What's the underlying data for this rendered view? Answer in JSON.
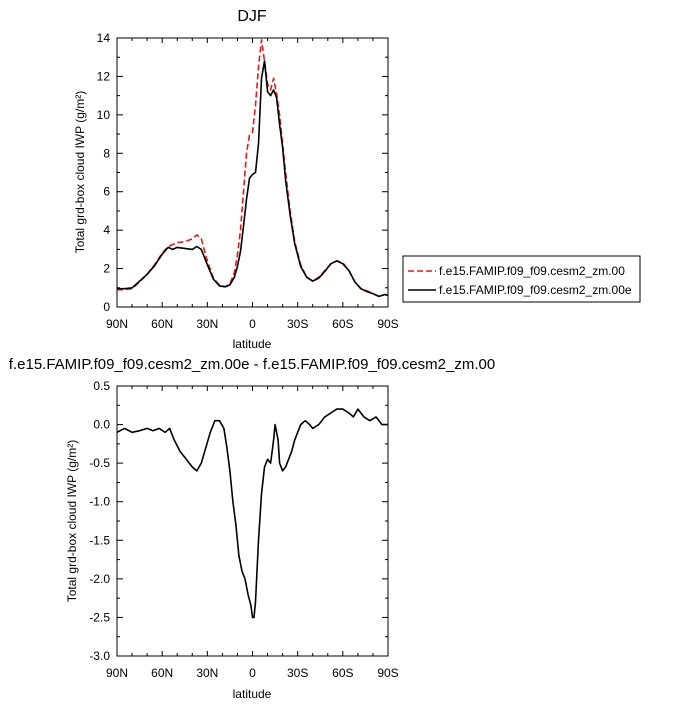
{
  "chart_data": [
    {
      "type": "line",
      "title": "DJF",
      "xlabel": "latitude",
      "ylabel": "Total grd-box cloud IWP (g/m²)",
      "xlim": [
        -90,
        90
      ],
      "ylim": [
        0,
        14
      ],
      "x_ticks": [
        -90,
        -60,
        -30,
        0,
        30,
        60,
        90
      ],
      "x_tick_labels": [
        "90N",
        "60N",
        "30N",
        "0",
        "30S",
        "60S",
        "90S"
      ],
      "y_ticks": [
        0,
        2,
        4,
        6,
        8,
        10,
        12,
        14
      ],
      "y_tick_labels": [
        "0",
        "2",
        "4",
        "6",
        "8",
        "10",
        "12",
        "14"
      ],
      "legend": "right",
      "series": [
        {
          "name": "f.e15.FAMIP.f09_f09.cesm2_zm.00",
          "color": "#e31a1c",
          "dash": "dashed",
          "x": [
            -90,
            -85,
            -80,
            -75,
            -70,
            -65,
            -60,
            -56,
            -53,
            -50,
            -45,
            -40,
            -37,
            -34,
            -30,
            -26,
            -22,
            -18,
            -15,
            -12,
            -10,
            -8,
            -6,
            -4,
            -2,
            0,
            2,
            4,
            6,
            8,
            10,
            12,
            14,
            16,
            18,
            20,
            22,
            25,
            28,
            32,
            36,
            40,
            44,
            48,
            52,
            56,
            60,
            64,
            68,
            72,
            76,
            80,
            84,
            88,
            90
          ],
          "y": [
            0.9,
            0.9,
            0.95,
            1.3,
            1.7,
            2.2,
            2.8,
            3.15,
            3.25,
            3.35,
            3.4,
            3.55,
            3.75,
            3.55,
            2.4,
            1.5,
            1.15,
            1.05,
            1.2,
            1.8,
            2.7,
            4.0,
            6.0,
            8.0,
            8.95,
            9.1,
            10.5,
            12.5,
            13.9,
            12.8,
            11.6,
            11.3,
            11.9,
            11.1,
            10.0,
            8.5,
            7.0,
            5.0,
            3.4,
            2.2,
            1.55,
            1.35,
            1.55,
            1.9,
            2.25,
            2.4,
            2.3,
            1.9,
            1.3,
            0.95,
            0.85,
            0.7,
            0.55,
            0.65,
            0.6
          ]
        },
        {
          "name": "f.e15.FAMIP.f09_f09.cesm2_zm.00e",
          "color": "#000000",
          "dash": "solid",
          "x": [
            -90,
            -85,
            -80,
            -75,
            -70,
            -65,
            -60,
            -56,
            -53,
            -50,
            -45,
            -40,
            -37,
            -34,
            -30,
            -26,
            -22,
            -18,
            -15,
            -12,
            -10,
            -8,
            -6,
            -4,
            -2,
            0,
            2,
            4,
            6,
            8,
            10,
            12,
            14,
            16,
            18,
            20,
            22,
            25,
            28,
            32,
            36,
            40,
            44,
            48,
            52,
            56,
            60,
            64,
            68,
            72,
            76,
            80,
            84,
            88,
            90
          ],
          "y": [
            0.95,
            0.95,
            1.0,
            1.35,
            1.7,
            2.15,
            2.75,
            3.1,
            3.0,
            3.1,
            3.05,
            3.0,
            3.15,
            3.0,
            2.2,
            1.45,
            1.1,
            1.05,
            1.15,
            1.55,
            2.1,
            2.9,
            4.2,
            5.6,
            6.7,
            6.9,
            7.0,
            8.5,
            11.9,
            12.8,
            11.2,
            11.0,
            11.3,
            10.9,
            9.5,
            8.3,
            6.6,
            4.8,
            3.3,
            2.1,
            1.55,
            1.35,
            1.5,
            1.85,
            2.25,
            2.4,
            2.25,
            1.9,
            1.3,
            0.95,
            0.8,
            0.7,
            0.55,
            0.65,
            0.6
          ]
        }
      ]
    },
    {
      "type": "line",
      "title": "f.e15.FAMIP.f09_f09.cesm2_zm.00e - f.e15.FAMIP.f09_f09.cesm2_zm.00",
      "xlabel": "latitude",
      "ylabel": "Total grd-box cloud IWP (g/m²)",
      "xlim": [
        -90,
        90
      ],
      "ylim": [
        -3.0,
        0.5
      ],
      "x_ticks": [
        -90,
        -60,
        -30,
        0,
        30,
        60,
        90
      ],
      "x_tick_labels": [
        "90N",
        "60N",
        "30N",
        "0",
        "30S",
        "60S",
        "90S"
      ],
      "y_ticks": [
        -3.0,
        -2.5,
        -2.0,
        -1.5,
        -1.0,
        -0.5,
        0.0,
        0.5
      ],
      "y_tick_labels": [
        "-3.0",
        "-2.5",
        "-2.0",
        "-1.5",
        "-1.0",
        "-0.5",
        "0.0",
        "0.5"
      ],
      "series": [
        {
          "name": "",
          "color": "#000000",
          "dash": "solid",
          "x": [
            -90,
            -85,
            -80,
            -75,
            -70,
            -66,
            -62,
            -58,
            -55,
            -52,
            -48,
            -44,
            -40,
            -37,
            -34,
            -31,
            -28,
            -25,
            -22,
            -19,
            -17,
            -15,
            -13,
            -11,
            -9,
            -7,
            -5,
            -3,
            -1,
            0,
            1,
            2,
            4,
            6,
            8,
            10,
            12,
            14,
            15,
            17,
            18,
            20,
            22,
            24,
            26,
            28,
            30,
            32,
            35,
            38,
            40,
            44,
            48,
            52,
            56,
            60,
            64,
            67,
            70,
            74,
            78,
            82,
            86,
            90
          ],
          "y": [
            -0.1,
            -0.05,
            -0.1,
            -0.08,
            -0.05,
            -0.08,
            -0.05,
            -0.1,
            -0.05,
            -0.2,
            -0.35,
            -0.45,
            -0.55,
            -0.6,
            -0.5,
            -0.3,
            -0.1,
            0.05,
            0.05,
            -0.05,
            -0.3,
            -0.6,
            -1.0,
            -1.3,
            -1.7,
            -1.9,
            -2.0,
            -2.2,
            -2.35,
            -2.5,
            -2.5,
            -2.3,
            -1.5,
            -0.9,
            -0.55,
            -0.45,
            -0.5,
            -0.2,
            0.0,
            -0.2,
            -0.5,
            -0.6,
            -0.55,
            -0.45,
            -0.35,
            -0.2,
            -0.1,
            0.0,
            0.05,
            0.0,
            -0.05,
            0.0,
            0.1,
            0.15,
            0.2,
            0.2,
            0.15,
            0.1,
            0.2,
            0.1,
            0.05,
            0.1,
            0.0,
            0.0
          ]
        }
      ]
    }
  ]
}
